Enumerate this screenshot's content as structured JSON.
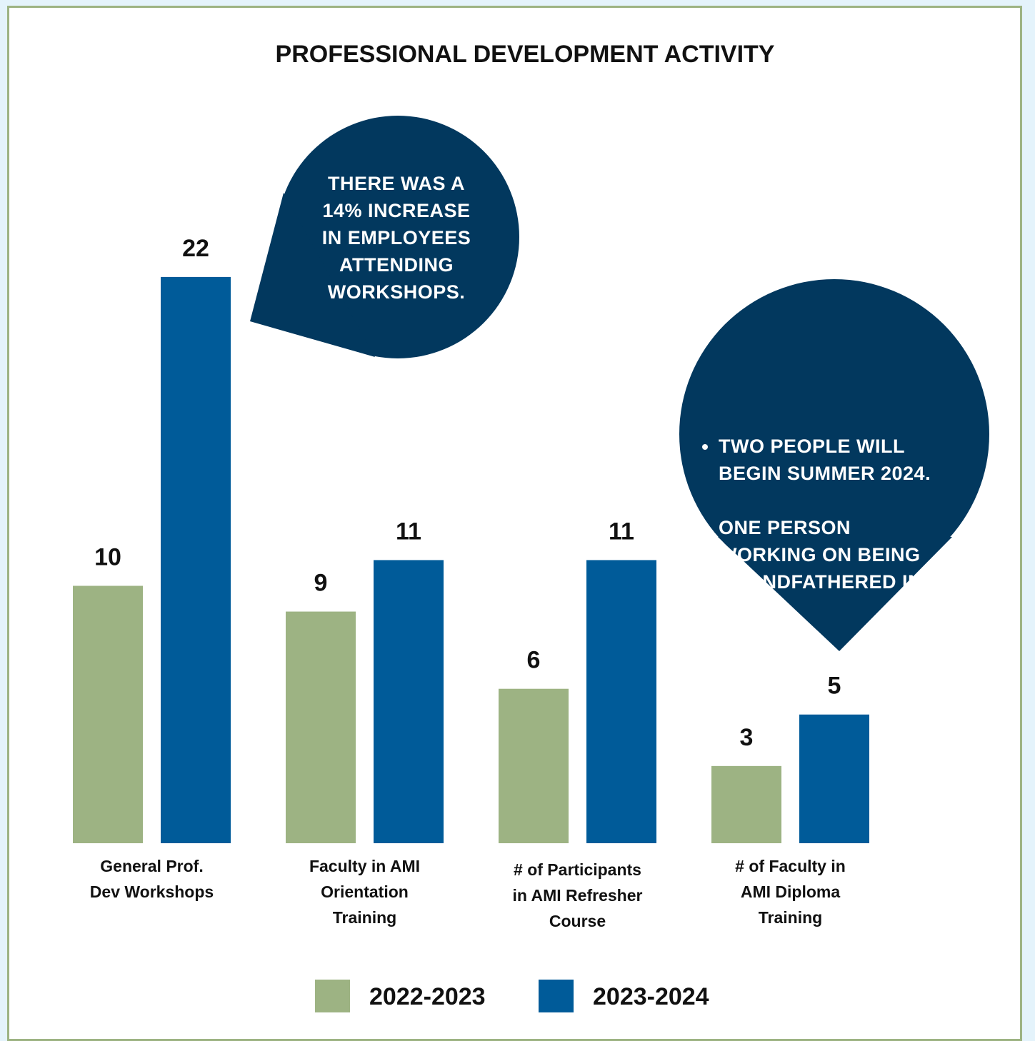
{
  "chart_data": {
    "type": "bar",
    "title": "PROFESSIONAL DEVELOPMENT ACTIVITY",
    "categories": [
      "General Prof.\nDev Workshops",
      "Faculty in AMI\nOrientation\nTraining",
      "# of Participants\nin AMI Refresher\nCourse",
      "# of Faculty in\nAMI Diploma\nTraining"
    ],
    "series": [
      {
        "name": "2022-2023",
        "color": "#9db383",
        "values": [
          10,
          9,
          6,
          3
        ]
      },
      {
        "name": "2023-2024",
        "color": "#005b99",
        "values": [
          22,
          11,
          11,
          5
        ]
      }
    ],
    "annotations": [
      {
        "text": "THERE WAS A\n14% INCREASE\nIN EMPLOYEES\nATTENDING\nWORKSHOPS."
      },
      {
        "items": [
          "TWO PEOPLE WILL\nBEGIN SUMMER 2024.",
          "ONE PERSON\nWORKING ON BEING\nGRANDFATHERED IN."
        ]
      }
    ]
  }
}
